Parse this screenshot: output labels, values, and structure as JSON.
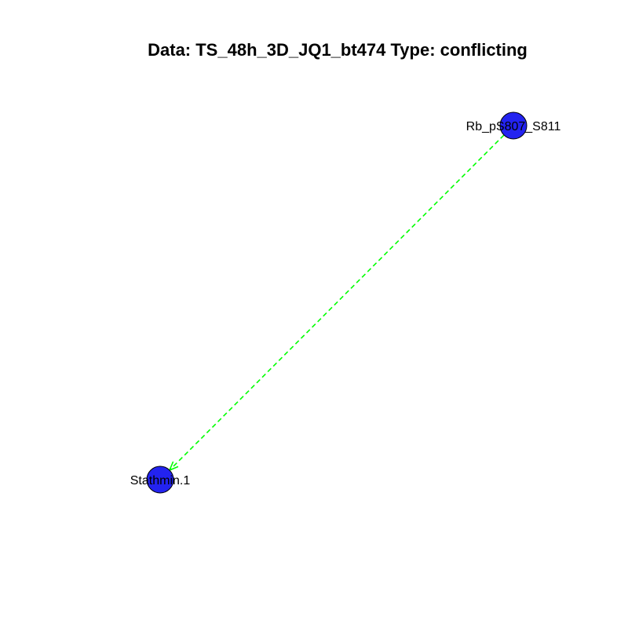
{
  "title": "Data: TS_48h_3D_JQ1_bt474 Type: conflicting",
  "colors": {
    "node_fill": "#2323f0",
    "node_stroke": "#000000",
    "edge": "#00ff00",
    "background": "#ffffff"
  },
  "nodes": [
    {
      "id": "rb",
      "label": "Rb_pS807_S811"
    },
    {
      "id": "stathmin",
      "label": "Stathmin.1"
    }
  ],
  "edges": [
    {
      "from": "rb",
      "to": "stathmin",
      "style": "dashed",
      "arrow": "end"
    }
  ]
}
